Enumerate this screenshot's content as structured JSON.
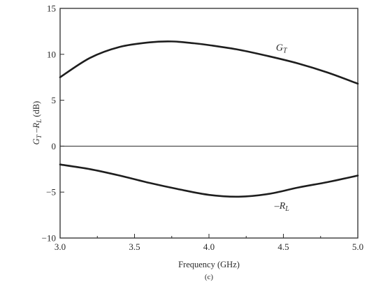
{
  "chart_data": {
    "type": "line",
    "xlabel": "Frequency (GHz)",
    "ylabel_parts": [
      "G",
      "T",
      " –R",
      "L",
      " (dB)"
    ],
    "caption": "(c)",
    "xlim": [
      3.0,
      5.0
    ],
    "ylim": [
      -10,
      15
    ],
    "xticks": [
      "3.0",
      "3.5",
      "4.0",
      "4.5",
      "5.0"
    ],
    "yticks": [
      "15",
      "10",
      "5",
      "0",
      "−5",
      "−10"
    ],
    "zero_line": true,
    "series": [
      {
        "label_main": "G",
        "label_sub": "T",
        "x": [
          3.0,
          3.2,
          3.4,
          3.6,
          3.75,
          3.9,
          4.0,
          4.2,
          4.4,
          4.6,
          4.8,
          5.0
        ],
        "y": [
          7.5,
          9.6,
          10.8,
          11.3,
          11.4,
          11.2,
          11.0,
          10.5,
          9.8,
          9.0,
          8.0,
          6.8
        ]
      },
      {
        "label_main": "–R",
        "label_sub": "L",
        "x": [
          3.0,
          3.2,
          3.4,
          3.6,
          3.8,
          4.0,
          4.2,
          4.4,
          4.6,
          4.8,
          5.0
        ],
        "y": [
          -2.0,
          -2.5,
          -3.2,
          -4.0,
          -4.7,
          -5.3,
          -5.5,
          -5.2,
          -4.5,
          -3.9,
          -3.2
        ]
      }
    ]
  }
}
